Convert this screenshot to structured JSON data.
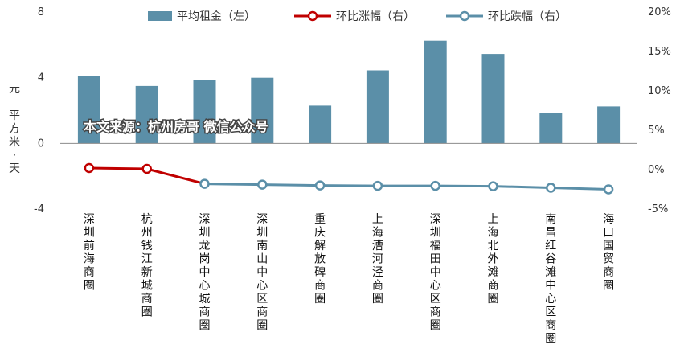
{
  "watermark": "本文来源：杭州房哥 微信公众号",
  "chart_data": {
    "type": "bar",
    "categories": [
      "深圳前海商圈",
      "杭州钱江新城商圈",
      "深圳龙岗中心城商圈",
      "深圳南山中心区商圈",
      "重庆解放碑商圈",
      "上海漕河泾商圈",
      "深圳福田中心区商圈",
      "上海北外滩商圈",
      "南昌红谷滩中心区商圈",
      "海口国贸商圈"
    ],
    "ylabel": "元/平方米·天",
    "ylim": [
      -4,
      8
    ],
    "yticks": [
      "-4",
      "0",
      "4",
      "8"
    ],
    "y2lim": [
      -5,
      20
    ],
    "y2ticks": [
      "-5%",
      "0%",
      "5%",
      "10%",
      "15%",
      "20%"
    ],
    "legend_position": "top",
    "colors": {
      "bar": "#5b8fa8",
      "rise": "#c00000",
      "fall": "#5b8fa8"
    },
    "series": [
      {
        "name": "平均租金（左）",
        "type": "bar",
        "axis": "left",
        "values": [
          4.1,
          3.5,
          3.85,
          4.0,
          2.3,
          4.45,
          6.25,
          5.45,
          1.85,
          2.25
        ]
      },
      {
        "name": "环比涨幅（右）",
        "type": "line",
        "axis": "right",
        "values": [
          0.2,
          0.1,
          -1.8,
          null,
          null,
          null,
          null,
          null,
          null,
          null
        ]
      },
      {
        "name": "环比跌幅（右）",
        "type": "line",
        "axis": "right",
        "values": [
          null,
          null,
          -1.8,
          -1.9,
          -2.0,
          -2.05,
          -2.05,
          -2.1,
          -2.3,
          -2.5
        ]
      }
    ]
  }
}
